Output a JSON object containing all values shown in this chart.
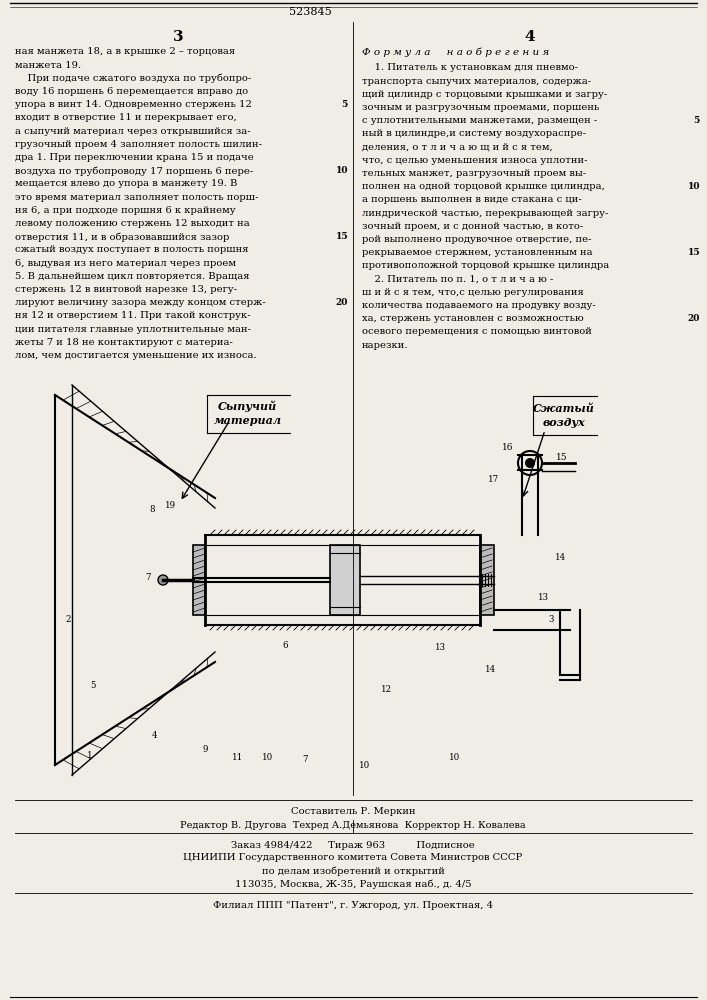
{
  "bg_color": "#f0ede6",
  "top_stamp": "523845",
  "formula_header": "Ф о р м у л а     н а о б р е г е н и я",
  "left_col_text": [
    "ная манжета 18, а в крышке 2 – торцовая",
    "манжета 19.",
    "    При подаче сжатого воздуха по трубопро-",
    "воду 16 поршень 6 перемещается вправо до",
    "упора в винт 14. Одновременно стержень 12",
    "входит в отверстие 11 и перекрывает его,",
    "а сыпучий материал через открывшийся за-",
    "грузочный проем 4 заполняет полость шилин-",
    "дра 1. При переключении крана 15 и подаче",
    "воздуха по трубопроводу 17 поршень 6 пере-",
    "мещается влево до упора в манжету 19. В",
    "это время материал заполняет полость порш-",
    "ня 6, а при подходе поршня 6 к крайнему",
    "левому положению стержень 12 выходит на",
    "отверстия 11, и в образовавшийся зазор",
    "сжатый воздух поступает в полость поршня",
    "6, выдувая из него материал через проем",
    "5. В дальнейшем цикл повторяется. Вращая",
    "стержень 12 в винтовой нарезке 13, регу-",
    "лируют величину зазора между концом стерж-",
    "ня 12 и отверстием 11. При такой конструк-",
    "ции питателя главные уплотнительные ман-",
    "жеты 7 и 18 не контактируют с материа-",
    "лом, чем достигается уменьшение их износа."
  ],
  "right_col_text": [
    "    1. Питатель к установкам для пневмо-",
    "транспорта сыпучих материалов, содержа-",
    "щий цилиндр с торцовыми крышками и загру-",
    "зочным и разгрузочным проемами, поршень",
    "с уплотнительными манжетами, размещен -",
    "ный в цилиндре,и систему воздухораспре-",
    "деления, о т л и ч а ю щ и й с я тем,",
    "что, с целью уменьшения износа уплотни-",
    "тельных манжет, разгрузочный проем вы-",
    "полнен на одной торцовой крышке цилиндра,",
    "а поршень выполнен в виде стакана с ци-",
    "линдрической частью, перекрывающей загру-",
    "зочный проем, и с донной частью, в кото-",
    "рой выполнено продувочное отверстие, пе-",
    "рекрываемое стержнем, установленным на",
    "противоположной торцовой крышке цилиндра",
    "    2. Питатель по п. 1, о т л и ч а ю -",
    "ш и й с я тем, что,с целью регулирования",
    "количества подаваемого на продувку возду-",
    "ха, стержень установлен с возможностью",
    "осевого перемещения с помощью винтовой",
    "нарезки."
  ],
  "diagram_label_syp": "Сыпучий",
  "diagram_label_mat": "материал",
  "diagram_label_szh": "Сжатый",
  "diagram_label_vzd": "воздух",
  "footer_composer": "Составитель Р. Меркин",
  "footer_editor": "Редактор В. Другова  Техред А.Демьянова  Корректор Н. Ковалева",
  "footer_order": "Заказ 4984/422     Тираж 963          Подписное",
  "footer_org": "ЦНИИПИ Государственного комитета Совета Министров СССР",
  "footer_dept": "по делам изобретений и открытий",
  "footer_addr": "113035, Москва, Ж-35, Раушская наб., д. 4/5",
  "footer_branch": "Филиал ППП \"Патент\", г. Ужгород, ул. Проектная, 4"
}
